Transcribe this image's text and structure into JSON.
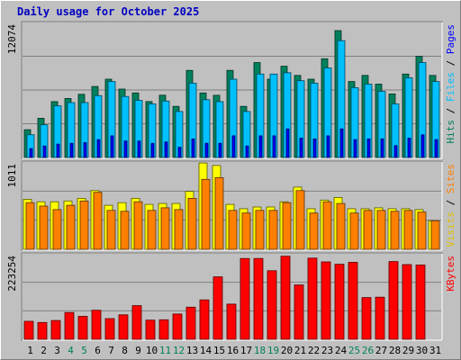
{
  "chart_title": "Daily usage for October 2025",
  "colors": {
    "hits": "#00805c",
    "files": "#00c0ff",
    "pages": "#0000ff",
    "visits": "#ffff00",
    "sites": "#ff8000",
    "kbytes": "#ff0000",
    "background": "#c0c0c0",
    "weekend_day": "#00805c",
    "weekday": "#000000"
  },
  "chart_data": [
    {
      "type": "bar",
      "title": "Daily usage for October 2025",
      "panel": "hits-files-pages",
      "ylabel": "Pages / Files / Hits",
      "ymax_label": "12074",
      "ylim": [
        0,
        12074
      ],
      "categories": [
        "1",
        "2",
        "3",
        "4",
        "5",
        "6",
        "7",
        "8",
        "9",
        "10",
        "11",
        "12",
        "13",
        "14",
        "15",
        "16",
        "17",
        "18",
        "19",
        "20",
        "21",
        "22",
        "23",
        "24",
        "25",
        "26",
        "27",
        "28",
        "29",
        "30",
        "31"
      ],
      "series": [
        {
          "name": "Hits",
          "color": "#00805c",
          "values": [
            2490,
            3510,
            5000,
            5280,
            5650,
            6350,
            7000,
            6120,
            5770,
            5000,
            5570,
            4570,
            7790,
            5770,
            5560,
            7790,
            4570,
            8490,
            7000,
            8160,
            7340,
            7000,
            8830,
            11350,
            6790,
            7340,
            6560,
            5680,
            7460,
            9050,
            7340
          ]
        },
        {
          "name": "Files",
          "color": "#00c0ff",
          "values": [
            2040,
            2920,
            4620,
            4910,
            4910,
            5530,
            6790,
            5460,
            5110,
            4800,
            5050,
            4110,
            6650,
            5170,
            5000,
            7000,
            4110,
            7460,
            7460,
            7580,
            6870,
            6650,
            8010,
            10450,
            6250,
            6560,
            5920,
            4800,
            7130,
            8490,
            6790
          ]
        },
        {
          "name": "Pages",
          "color": "#0000ff",
          "values": [
            800,
            1030,
            1200,
            1260,
            1330,
            1600,
            1940,
            1470,
            1470,
            1260,
            1390,
            920,
            1660,
            1270,
            1270,
            1940,
            1030,
            1940,
            1940,
            2560,
            1730,
            1660,
            1940,
            2560,
            1600,
            1670,
            1670,
            1060,
            1730,
            2030,
            1600
          ]
        }
      ]
    },
    {
      "type": "bar",
      "panel": "visits-sites",
      "ylabel": "Sites / Visits",
      "ymax_label": "1011",
      "ylim": [
        0,
        1011
      ],
      "categories": [
        "1",
        "2",
        "3",
        "4",
        "5",
        "6",
        "7",
        "8",
        "9",
        "10",
        "11",
        "12",
        "13",
        "14",
        "15",
        "16",
        "17",
        "18",
        "19",
        "20",
        "21",
        "22",
        "23",
        "24",
        "25",
        "26",
        "27",
        "28",
        "29",
        "30",
        "31"
      ],
      "series": [
        {
          "name": "Visits",
          "color": "#ffff00",
          "values": [
            580,
            550,
            550,
            560,
            590,
            680,
            510,
            540,
            590,
            520,
            530,
            530,
            670,
            1000,
            970,
            520,
            470,
            490,
            490,
            550,
            720,
            470,
            570,
            600,
            470,
            470,
            480,
            470,
            470,
            460,
            330
          ]
        },
        {
          "name": "Sites",
          "color": "#ff8000",
          "values": [
            540,
            500,
            460,
            510,
            560,
            660,
            450,
            440,
            550,
            450,
            480,
            460,
            590,
            810,
            830,
            450,
            420,
            450,
            450,
            540,
            680,
            420,
            550,
            530,
            420,
            450,
            450,
            440,
            450,
            430,
            330
          ]
        }
      ]
    },
    {
      "type": "bar",
      "panel": "kbytes",
      "ylabel": "KBytes",
      "ymax_label": "223254",
      "ylim": [
        0,
        223254
      ],
      "categories": [
        "1",
        "2",
        "3",
        "4",
        "5",
        "6",
        "7",
        "8",
        "9",
        "10",
        "11",
        "12",
        "13",
        "14",
        "15",
        "16",
        "17",
        "18",
        "19",
        "20",
        "21",
        "22",
        "23",
        "24",
        "25",
        "26",
        "27",
        "28",
        "29",
        "30",
        "31"
      ],
      "series": [
        {
          "name": "KBytes",
          "color": "#ff0000",
          "values": [
            47000,
            44000,
            49000,
            70000,
            60000,
            76000,
            54000,
            64000,
            88000,
            50000,
            51000,
            66000,
            84000,
            103000,
            163000,
            92000,
            211000,
            211000,
            179000,
            217000,
            142000,
            212000,
            202000,
            196000,
            201000,
            109000,
            110000,
            203000,
            195000,
            194000,
            0
          ]
        }
      ]
    }
  ],
  "days": [
    "1",
    "2",
    "3",
    "4",
    "5",
    "6",
    "7",
    "8",
    "9",
    "10",
    "11",
    "12",
    "13",
    "14",
    "15",
    "16",
    "17",
    "18",
    "19",
    "20",
    "21",
    "22",
    "23",
    "24",
    "25",
    "26",
    "27",
    "28",
    "29",
    "30",
    "31"
  ],
  "weekend_days": [
    4,
    5,
    11,
    12,
    18,
    19,
    25,
    26
  ]
}
